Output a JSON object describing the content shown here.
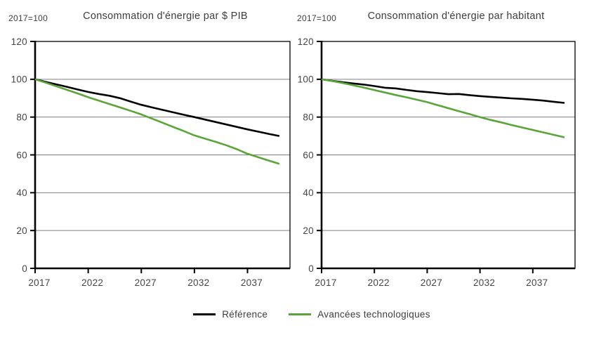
{
  "colors": {
    "reference": "#000000",
    "avancees": "#5AA537",
    "grid": "#7f7f7f",
    "axis": "#000000",
    "text": "#3d3d3d"
  },
  "legend": {
    "items": [
      {
        "label": "Référence",
        "color": "#000000"
      },
      {
        "label": "Avancées technologiques",
        "color": "#5AA537"
      }
    ]
  },
  "chart_data": [
    {
      "type": "line",
      "title": "Consommation d'énergie par $ PIB",
      "axis_note": "2017=100",
      "xlabel": "",
      "ylabel": "",
      "ylim": [
        0,
        120
      ],
      "ytick_step": 20,
      "yticks": [
        0,
        20,
        40,
        60,
        80,
        100,
        120
      ],
      "xlim": [
        2017,
        2041
      ],
      "xticks": [
        2017,
        2022,
        2027,
        2032,
        2037
      ],
      "grid": "horizontal",
      "legend_position": "bottom",
      "x": [
        2017,
        2018,
        2019,
        2020,
        2021,
        2022,
        2023,
        2024,
        2025,
        2026,
        2027,
        2028,
        2029,
        2030,
        2031,
        2032,
        2033,
        2034,
        2035,
        2036,
        2037,
        2038,
        2039,
        2040
      ],
      "series": [
        {
          "name": "Référence",
          "color": "#000000",
          "values": [
            100,
            98.6,
            97.3,
            96.0,
            94.6,
            93.3,
            92.2,
            91.3,
            90.0,
            88.2,
            86.5,
            85.1,
            83.8,
            82.5,
            81.2,
            80.0,
            78.7,
            77.4,
            76.1,
            74.8,
            73.5,
            72.3,
            71.1,
            70.0
          ]
        },
        {
          "name": "Avancées technologiques",
          "color": "#5AA537",
          "values": [
            100,
            98.2,
            96.3,
            94.4,
            92.5,
            90.5,
            88.7,
            86.9,
            85.1,
            83.3,
            81.4,
            79.2,
            77.0,
            74.8,
            72.6,
            70.3,
            68.6,
            66.9,
            65.1,
            63.0,
            60.6,
            58.8,
            57.0,
            55.3
          ]
        }
      ]
    },
    {
      "type": "line",
      "title": "Consommation d'énergie par habitant",
      "axis_note": "2017=100",
      "xlabel": "",
      "ylabel": "",
      "ylim": [
        0,
        120
      ],
      "ytick_step": 20,
      "yticks": [
        0,
        20,
        40,
        60,
        80,
        100,
        120
      ],
      "xlim": [
        2017,
        2041
      ],
      "xticks": [
        2017,
        2022,
        2027,
        2032,
        2037
      ],
      "grid": "horizontal",
      "legend_position": "bottom",
      "x": [
        2017,
        2018,
        2019,
        2020,
        2021,
        2022,
        2023,
        2024,
        2025,
        2026,
        2027,
        2028,
        2029,
        2030,
        2031,
        2032,
        2033,
        2034,
        2035,
        2036,
        2037,
        2038,
        2039,
        2040
      ],
      "series": [
        {
          "name": "Référence",
          "color": "#000000",
          "values": [
            100,
            99.2,
            98.4,
            97.8,
            97.2,
            96.4,
            95.5,
            95.2,
            94.4,
            93.7,
            93.2,
            92.7,
            92.1,
            92.2,
            91.6,
            91.1,
            90.7,
            90.3,
            89.9,
            89.6,
            89.2,
            88.7,
            88.1,
            87.5
          ]
        },
        {
          "name": "Avancées technologiques",
          "color": "#5AA537",
          "values": [
            100,
            99.1,
            98.0,
            96.8,
            95.6,
            94.3,
            93.0,
            91.7,
            90.5,
            89.2,
            87.9,
            86.3,
            84.7,
            83.1,
            81.6,
            80.0,
            78.5,
            77.2,
            75.8,
            74.5,
            73.2,
            71.9,
            70.6,
            69.3
          ]
        }
      ]
    }
  ]
}
